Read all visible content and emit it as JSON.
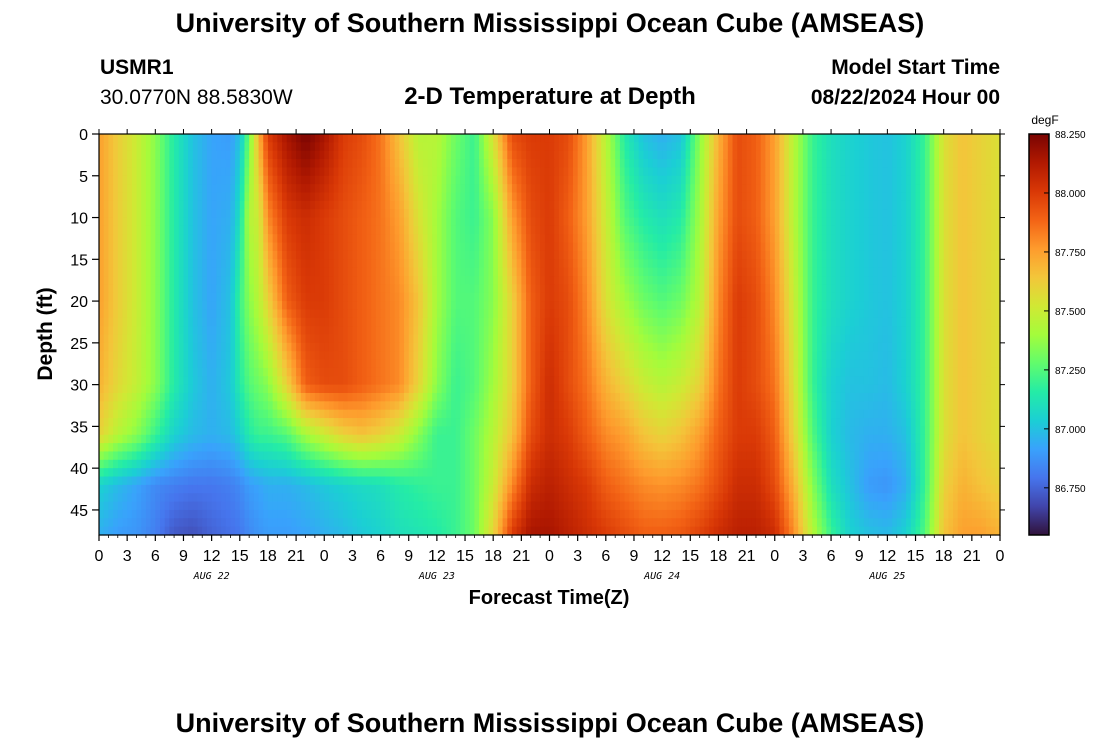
{
  "header": {
    "title": "University of Southern Mississippi Ocean Cube (AMSEAS)",
    "station": "USMR1",
    "coords": "30.0770N  88.5830W",
    "plot_title": "2-D Temperature at Depth",
    "model_label": "Model Start Time",
    "model_time": "08/22/2024 Hour 00"
  },
  "footer": {
    "title": "University of Southern Mississippi Ocean Cube (AMSEAS)"
  },
  "colors": {
    "colormap": [
      "#30123b",
      "#4145ab",
      "#4675ed",
      "#39a2fc",
      "#1bcfd4",
      "#24eca6",
      "#61fc6c",
      "#a4fc3b",
      "#d1e834",
      "#f3c63a",
      "#fe9b2d",
      "#f36315",
      "#d93806",
      "#b11901",
      "#7a0402"
    ]
  },
  "chart_data": {
    "type": "heatmap",
    "title": "2-D Temperature at Depth",
    "xlabel": "Forecast Time(Z)",
    "ylabel": "Depth (ft)",
    "colorbar_unit": "degF",
    "x_hours_range": [
      0,
      96
    ],
    "ylim": [
      0,
      48
    ],
    "y_ticks": [
      "0",
      "5",
      "10",
      "15",
      "20",
      "25",
      "30",
      "35",
      "40",
      "45"
    ],
    "x_tick_labels": [
      "0",
      "3",
      "6",
      "9",
      "12",
      "15",
      "18",
      "21",
      "0",
      "3",
      "6",
      "9",
      "12",
      "15",
      "18",
      "21",
      "0",
      "3",
      "6",
      "9",
      "12",
      "15",
      "18",
      "21",
      "0",
      "3",
      "6",
      "9",
      "12",
      "15",
      "18",
      "21",
      "0"
    ],
    "date_labels": [
      "AUG 22",
      "AUG 23",
      "AUG 24",
      "AUG 25"
    ],
    "colorbar_ticks": [
      "88.250",
      "88.000",
      "87.750",
      "87.500",
      "87.250",
      "87.000",
      "86.750"
    ],
    "colorbar_range": [
      86.55,
      88.25
    ],
    "depths_ft": [
      0,
      10,
      20,
      30,
      36,
      42,
      48
    ],
    "temperature_profiles": [
      {
        "hour": 0,
        "degF": [
          87.75,
          87.75,
          87.75,
          87.7,
          87.6,
          87.05,
          86.95
        ]
      },
      {
        "hour": 2,
        "degF": [
          87.62,
          87.62,
          87.62,
          87.58,
          87.45,
          86.98,
          86.9
        ]
      },
      {
        "hour": 4,
        "degF": [
          87.5,
          87.5,
          87.5,
          87.48,
          87.35,
          86.92,
          86.88
        ]
      },
      {
        "hour": 6,
        "degF": [
          87.35,
          87.35,
          87.35,
          87.35,
          87.2,
          86.85,
          86.82
        ]
      },
      {
        "hour": 8,
        "degF": [
          87.15,
          87.15,
          87.15,
          87.15,
          87.05,
          86.82,
          86.72
        ]
      },
      {
        "hour": 10,
        "degF": [
          87.0,
          87.0,
          87.0,
          87.02,
          86.98,
          86.8,
          86.7
        ]
      },
      {
        "hour": 12,
        "degF": [
          86.92,
          86.92,
          86.92,
          86.95,
          86.95,
          86.8,
          86.75
        ]
      },
      {
        "hour": 14,
        "degF": [
          86.9,
          86.95,
          87.0,
          87.02,
          86.98,
          86.82,
          86.78
        ]
      },
      {
        "hour": 15,
        "degF": [
          87.0,
          87.1,
          87.2,
          87.15,
          87.05,
          86.85,
          86.8
        ]
      },
      {
        "hour": 16,
        "degF": [
          87.3,
          87.45,
          87.35,
          87.25,
          87.15,
          86.9,
          86.85
        ]
      },
      {
        "hour": 17,
        "degF": [
          87.7,
          87.5,
          87.45,
          87.3,
          87.2,
          86.92,
          86.88
        ]
      },
      {
        "hour": 18,
        "degF": [
          88.0,
          87.8,
          87.6,
          87.35,
          87.2,
          86.95,
          86.9
        ]
      },
      {
        "hour": 20,
        "degF": [
          88.15,
          88.0,
          87.9,
          87.6,
          87.25,
          86.95,
          86.9
        ]
      },
      {
        "hour": 22,
        "degF": [
          88.25,
          88.05,
          88.0,
          87.9,
          87.4,
          86.98,
          86.92
        ]
      },
      {
        "hour": 24,
        "degF": [
          88.15,
          88.0,
          88.0,
          87.95,
          87.5,
          87.02,
          86.95
        ]
      },
      {
        "hour": 26,
        "degF": [
          88.0,
          87.95,
          87.95,
          87.95,
          87.6,
          87.05,
          86.98
        ]
      },
      {
        "hour": 28,
        "degF": [
          87.95,
          87.9,
          87.9,
          87.9,
          87.65,
          87.08,
          87.02
        ]
      },
      {
        "hour": 30,
        "degF": [
          87.85,
          87.85,
          87.85,
          87.85,
          87.6,
          87.1,
          87.05
        ]
      },
      {
        "hour": 32,
        "degF": [
          87.65,
          87.75,
          87.8,
          87.8,
          87.5,
          87.15,
          87.1
        ]
      },
      {
        "hour": 34,
        "degF": [
          87.45,
          87.55,
          87.65,
          87.6,
          87.35,
          87.18,
          87.12
        ]
      },
      {
        "hour": 36,
        "degF": [
          87.45,
          87.4,
          87.4,
          87.35,
          87.2,
          87.2,
          87.15
        ]
      },
      {
        "hour": 38,
        "degF": [
          87.3,
          87.25,
          87.25,
          87.2,
          87.2,
          87.2,
          87.2
        ]
      },
      {
        "hour": 40,
        "degF": [
          87.2,
          87.2,
          87.25,
          87.25,
          87.3,
          87.3,
          87.3
        ]
      },
      {
        "hour": 42,
        "degF": [
          87.55,
          87.35,
          87.35,
          87.4,
          87.45,
          87.5,
          87.6
        ]
      },
      {
        "hour": 44,
        "degF": [
          87.95,
          87.75,
          87.6,
          87.6,
          87.65,
          87.8,
          88.0
        ]
      },
      {
        "hour": 46,
        "degF": [
          88.0,
          87.95,
          87.9,
          87.9,
          87.95,
          88.05,
          88.15
        ]
      },
      {
        "hour": 48,
        "degF": [
          88.0,
          88.0,
          88.0,
          88.05,
          88.05,
          88.1,
          88.15
        ]
      },
      {
        "hour": 50,
        "degF": [
          87.95,
          87.9,
          87.95,
          87.95,
          88.0,
          88.05,
          88.1
        ]
      },
      {
        "hour": 52,
        "degF": [
          87.75,
          87.75,
          87.8,
          87.85,
          87.9,
          88.0,
          88.05
        ]
      },
      {
        "hour": 54,
        "degF": [
          87.45,
          87.5,
          87.55,
          87.7,
          87.8,
          87.9,
          88.0
        ]
      },
      {
        "hour": 56,
        "degF": [
          87.15,
          87.25,
          87.4,
          87.6,
          87.75,
          87.85,
          87.95
        ]
      },
      {
        "hour": 58,
        "degF": [
          87.0,
          87.15,
          87.3,
          87.5,
          87.65,
          87.8,
          87.9
        ]
      },
      {
        "hour": 60,
        "degF": [
          86.95,
          87.1,
          87.25,
          87.45,
          87.6,
          87.78,
          87.9
        ]
      },
      {
        "hour": 62,
        "degF": [
          87.0,
          87.15,
          87.3,
          87.5,
          87.65,
          87.8,
          87.92
        ]
      },
      {
        "hour": 64,
        "degF": [
          87.35,
          87.4,
          87.45,
          87.6,
          87.75,
          87.85,
          87.98
        ]
      },
      {
        "hour": 66,
        "degF": [
          87.7,
          87.75,
          87.8,
          87.85,
          87.9,
          87.95,
          88.05
        ]
      },
      {
        "hour": 68,
        "degF": [
          87.95,
          87.95,
          88.0,
          88.0,
          88.0,
          88.05,
          88.1
        ]
      },
      {
        "hour": 70,
        "degF": [
          87.9,
          87.9,
          87.95,
          87.95,
          88.0,
          88.05,
          88.1
        ]
      },
      {
        "hour": 72,
        "degF": [
          87.75,
          87.75,
          87.8,
          87.85,
          87.9,
          87.95,
          88.05
        ]
      },
      {
        "hour": 74,
        "degF": [
          87.45,
          87.45,
          87.5,
          87.55,
          87.6,
          87.7,
          87.8
        ]
      },
      {
        "hour": 76,
        "degF": [
          87.2,
          87.2,
          87.2,
          87.2,
          87.25,
          87.35,
          87.45
        ]
      },
      {
        "hour": 78,
        "degF": [
          87.1,
          87.1,
          87.1,
          87.05,
          87.05,
          87.1,
          87.2
        ]
      },
      {
        "hour": 80,
        "degF": [
          87.05,
          87.05,
          87.05,
          87.0,
          86.98,
          87.0,
          87.05
        ]
      },
      {
        "hour": 82,
        "degF": [
          87.02,
          87.02,
          87.02,
          87.0,
          86.95,
          86.9,
          87.0
        ]
      },
      {
        "hour": 84,
        "degF": [
          87.0,
          87.0,
          87.0,
          86.98,
          86.95,
          86.88,
          86.98
        ]
      },
      {
        "hour": 86,
        "degF": [
          87.05,
          87.05,
          87.05,
          87.05,
          87.0,
          86.95,
          87.05
        ]
      },
      {
        "hour": 88,
        "degF": [
          87.2,
          87.2,
          87.2,
          87.2,
          87.2,
          87.2,
          87.25
        ]
      },
      {
        "hour": 90,
        "degF": [
          87.55,
          87.55,
          87.55,
          87.55,
          87.55,
          87.6,
          87.65
        ]
      },
      {
        "hour": 92,
        "degF": [
          87.65,
          87.65,
          87.65,
          87.65,
          87.65,
          87.7,
          87.75
        ]
      },
      {
        "hour": 94,
        "degF": [
          87.6,
          87.6,
          87.6,
          87.6,
          87.6,
          87.65,
          87.75
        ]
      },
      {
        "hour": 96,
        "degF": [
          87.55,
          87.55,
          87.55,
          87.55,
          87.55,
          87.6,
          87.7
        ]
      }
    ]
  }
}
